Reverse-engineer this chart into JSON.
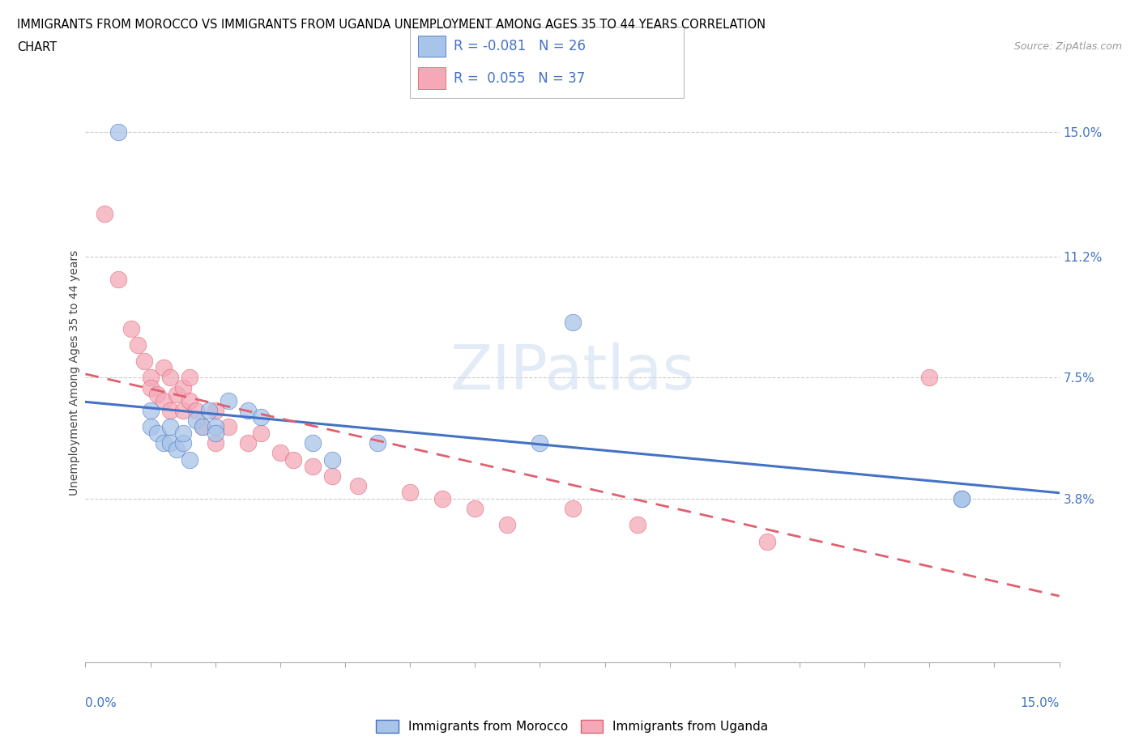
{
  "title_line1": "IMMIGRANTS FROM MOROCCO VS IMMIGRANTS FROM UGANDA UNEMPLOYMENT AMONG AGES 35 TO 44 YEARS CORRELATION",
  "title_line2": "CHART",
  "source": "Source: ZipAtlas.com",
  "ylabel": "Unemployment Among Ages 35 to 44 years",
  "xlim": [
    0.0,
    15.0
  ],
  "ytick_labels": [
    "3.8%",
    "7.5%",
    "11.2%",
    "15.0%"
  ],
  "ytick_values": [
    3.8,
    7.5,
    11.2,
    15.0
  ],
  "legend_label1": "Immigrants from Morocco",
  "legend_label2": "Immigrants from Uganda",
  "r_morocco": -0.081,
  "n_morocco": 26,
  "r_uganda": 0.055,
  "n_uganda": 37,
  "color_morocco": "#a8c4e8",
  "color_uganda": "#f4a8b8",
  "color_line_morocco": "#4472C4",
  "color_line_uganda": "#E06070",
  "background_color": "#ffffff",
  "morocco_x": [
    0.5,
    1.0,
    1.0,
    1.1,
    1.2,
    1.3,
    1.3,
    1.4,
    1.5,
    1.5,
    1.6,
    1.7,
    1.8,
    1.9,
    2.0,
    2.2,
    2.5,
    2.7,
    3.5,
    3.8,
    4.5,
    7.0,
    7.5,
    13.5,
    2.0,
    13.5
  ],
  "morocco_y": [
    15.0,
    6.5,
    6.0,
    5.8,
    5.5,
    6.0,
    5.5,
    5.3,
    5.5,
    5.8,
    5.0,
    6.2,
    6.0,
    6.5,
    6.0,
    6.8,
    6.5,
    6.3,
    5.5,
    5.0,
    5.5,
    5.5,
    9.2,
    3.8,
    5.8,
    3.8
  ],
  "uganda_x": [
    0.3,
    0.5,
    0.7,
    0.8,
    0.9,
    1.0,
    1.0,
    1.1,
    1.2,
    1.2,
    1.3,
    1.3,
    1.4,
    1.5,
    1.5,
    1.6,
    1.6,
    1.7,
    1.8,
    2.0,
    2.0,
    2.2,
    2.5,
    2.7,
    3.0,
    3.2,
    3.5,
    3.8,
    4.2,
    5.0,
    5.5,
    6.0,
    6.5,
    7.5,
    8.5,
    10.5,
    13.0
  ],
  "uganda_y": [
    12.5,
    10.5,
    9.0,
    8.5,
    8.0,
    7.5,
    7.2,
    7.0,
    6.8,
    7.8,
    6.5,
    7.5,
    7.0,
    6.5,
    7.2,
    6.8,
    7.5,
    6.5,
    6.0,
    5.5,
    6.5,
    6.0,
    5.5,
    5.8,
    5.2,
    5.0,
    4.8,
    4.5,
    4.2,
    4.0,
    3.8,
    3.5,
    3.0,
    3.5,
    3.0,
    2.5,
    7.5
  ]
}
